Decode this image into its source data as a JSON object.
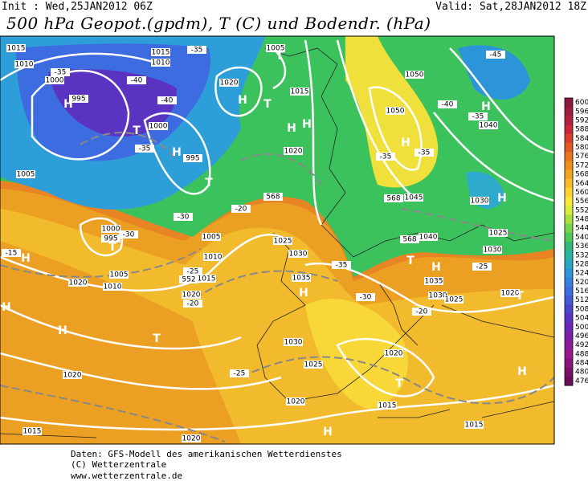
{
  "header": {
    "init": "Init : Wed,25JAN2012 06Z",
    "valid": "Valid: Sat,28JAN2012 18Z",
    "title": "500 hPa Geopot.(gpdm), T (C) und Bodendr. (hPa)"
  },
  "map": {
    "labels": [
      "1015",
      "1010",
      "1000",
      "995",
      "1015",
      "1010",
      "1020",
      "1005",
      "1015",
      "1050",
      "1050",
      "1040",
      "1000",
      "995",
      "1005",
      "1020",
      "1045",
      "1030",
      "1025",
      "1040",
      "1030",
      "1000",
      "995",
      "1010",
      "1005",
      "1015",
      "1005",
      "1010",
      "1020",
      "1020",
      "1025",
      "1030",
      "1035",
      "1035",
      "1030",
      "1025",
      "1020",
      "1030",
      "1025",
      "1020",
      "1020",
      "1020",
      "1015",
      "1015",
      "1015",
      "1020",
      "-35",
      "-40",
      "-35",
      "-40",
      "-35",
      "-45",
      "-40",
      "-35",
      "-35",
      "-35",
      "-30",
      "-30",
      "-25",
      "-20",
      "-15",
      "-20",
      "-25",
      "-35",
      "-30",
      "-25",
      "-20",
      "H",
      "T",
      "H",
      "T",
      "T",
      "H",
      "T",
      "H",
      "H",
      "T",
      "H",
      "H",
      "H",
      "H",
      "H",
      "H",
      "T",
      "H",
      "T",
      "H",
      "T",
      "H",
      "T",
      "H",
      "568",
      "568",
      "568",
      "552"
    ]
  },
  "legend": {
    "levels": [
      600,
      596,
      592,
      588,
      584,
      580,
      576,
      572,
      568,
      564,
      560,
      556,
      552,
      548,
      544,
      540,
      536,
      532,
      528,
      524,
      520,
      516,
      512,
      508,
      504,
      500,
      496,
      492,
      488,
      484,
      480,
      476
    ],
    "colors": [
      "#8c1a3c",
      "#a01c3c",
      "#b4203c",
      "#c8283a",
      "#d63e2e",
      "#e05a24",
      "#e8741c",
      "#ee8c1c",
      "#f4a420",
      "#f8bc28",
      "#fcd432",
      "#f8e83c",
      "#d8ec3c",
      "#a8e040",
      "#78d44c",
      "#4cc858",
      "#30b878",
      "#28b4a0",
      "#28a8c0",
      "#2c94d8",
      "#3480e0",
      "#3c6ce0",
      "#4458d8",
      "#4c44cc",
      "#5a34c0",
      "#6c28b4",
      "#7c20a8",
      "#8c1c98",
      "#9a1888",
      "#8a1478",
      "#7a1068",
      "#6a0c58"
    ]
  },
  "footer": {
    "lines": [
      "Daten: GFS-Modell des amerikanischen Wetterdienstes",
      "(C) Wetterzentrale",
      "www.wetterzentrale.de"
    ]
  }
}
